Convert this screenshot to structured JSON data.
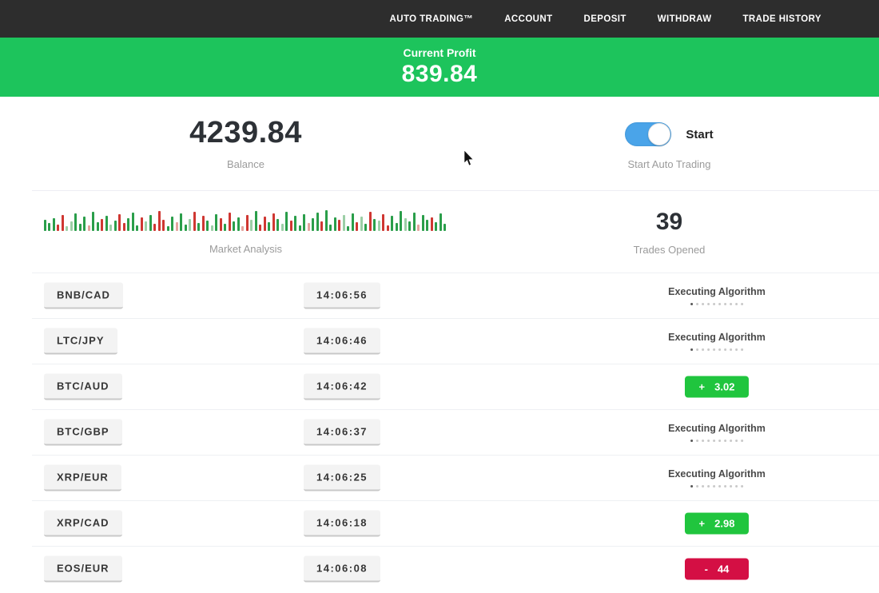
{
  "colors": {
    "navbar_bg": "#2d2d2d",
    "banner_green": "#1dc45c",
    "toggle_blue": "#4aa4e9",
    "profit_green": "#20c53e",
    "loss_red": "#d40f44"
  },
  "navbar": {
    "items": [
      "AUTO TRADING™",
      "ACCOUNT",
      "DEPOSIT",
      "WITHDRAW",
      "TRADE HISTORY"
    ]
  },
  "profit_banner": {
    "label": "Current Profit",
    "value": "839.84"
  },
  "summary": {
    "balance_value": "4239.84",
    "balance_label": "Balance",
    "toggle_label": "Start",
    "toggle_sublabel": "Start Auto Trading",
    "toggle_state": "on"
  },
  "market_analysis": {
    "label": "Market Analysis",
    "bar_colors": {
      "g": "#2a9e4a",
      "r": "#cf3732",
      "G": "#9ccfa6",
      "R": "#e4a49e"
    },
    "bars": [
      [
        14,
        "g"
      ],
      [
        10,
        "g"
      ],
      [
        16,
        "g"
      ],
      [
        8,
        "r"
      ],
      [
        20,
        "r"
      ],
      [
        6,
        "G"
      ],
      [
        12,
        "G"
      ],
      [
        22,
        "g"
      ],
      [
        9,
        "g"
      ],
      [
        18,
        "g"
      ],
      [
        7,
        "R"
      ],
      [
        24,
        "g"
      ],
      [
        11,
        "g"
      ],
      [
        15,
        "r"
      ],
      [
        19,
        "g"
      ],
      [
        8,
        "G"
      ],
      [
        13,
        "g"
      ],
      [
        21,
        "r"
      ],
      [
        10,
        "r"
      ],
      [
        16,
        "g"
      ],
      [
        23,
        "g"
      ],
      [
        7,
        "g"
      ],
      [
        17,
        "r"
      ],
      [
        12,
        "G"
      ],
      [
        20,
        "g"
      ],
      [
        9,
        "r"
      ],
      [
        25,
        "r"
      ],
      [
        14,
        "r"
      ],
      [
        6,
        "g"
      ],
      [
        18,
        "g"
      ],
      [
        11,
        "R"
      ],
      [
        22,
        "g"
      ],
      [
        8,
        "g"
      ],
      [
        15,
        "G"
      ],
      [
        24,
        "r"
      ],
      [
        10,
        "g"
      ],
      [
        19,
        "r"
      ],
      [
        13,
        "g"
      ],
      [
        7,
        "G"
      ],
      [
        21,
        "g"
      ],
      [
        16,
        "r"
      ],
      [
        9,
        "g"
      ],
      [
        23,
        "r"
      ],
      [
        12,
        "g"
      ],
      [
        17,
        "g"
      ],
      [
        6,
        "R"
      ],
      [
        20,
        "r"
      ],
      [
        14,
        "G"
      ],
      [
        25,
        "g"
      ],
      [
        8,
        "r"
      ],
      [
        18,
        "r"
      ],
      [
        11,
        "g"
      ],
      [
        22,
        "r"
      ],
      [
        15,
        "g"
      ],
      [
        9,
        "G"
      ],
      [
        24,
        "g"
      ],
      [
        13,
        "r"
      ],
      [
        19,
        "g"
      ],
      [
        7,
        "g"
      ],
      [
        21,
        "g"
      ],
      [
        10,
        "R"
      ],
      [
        16,
        "g"
      ],
      [
        23,
        "g"
      ],
      [
        12,
        "r"
      ],
      [
        26,
        "g"
      ],
      [
        8,
        "g"
      ],
      [
        17,
        "g"
      ],
      [
        14,
        "r"
      ],
      [
        20,
        "G"
      ],
      [
        6,
        "g"
      ],
      [
        22,
        "g"
      ],
      [
        11,
        "r"
      ],
      [
        18,
        "G"
      ],
      [
        9,
        "g"
      ],
      [
        24,
        "r"
      ],
      [
        15,
        "g"
      ],
      [
        13,
        "G"
      ],
      [
        21,
        "r"
      ],
      [
        7,
        "r"
      ],
      [
        19,
        "g"
      ],
      [
        10,
        "g"
      ],
      [
        25,
        "g"
      ],
      [
        16,
        "G"
      ],
      [
        12,
        "g"
      ],
      [
        23,
        "g"
      ],
      [
        8,
        "R"
      ],
      [
        20,
        "g"
      ],
      [
        14,
        "g"
      ],
      [
        17,
        "r"
      ],
      [
        11,
        "g"
      ],
      [
        22,
        "g"
      ],
      [
        9,
        "g"
      ]
    ]
  },
  "trades_opened": {
    "value": "39",
    "label": "Trades Opened"
  },
  "trades": {
    "executing_dots": 10,
    "rows": [
      {
        "pair": "BNB/CAD",
        "time": "14:06:56",
        "status": {
          "type": "executing",
          "label": "Executing Algorithm"
        }
      },
      {
        "pair": "LTC/JPY",
        "time": "14:06:46",
        "status": {
          "type": "executing",
          "label": "Executing Algorithm"
        }
      },
      {
        "pair": "BTC/AUD",
        "time": "14:06:42",
        "status": {
          "type": "profit",
          "sign": "+",
          "value": "3.02"
        }
      },
      {
        "pair": "BTC/GBP",
        "time": "14:06:37",
        "status": {
          "type": "executing",
          "label": "Executing Algorithm"
        }
      },
      {
        "pair": "XRP/EUR",
        "time": "14:06:25",
        "status": {
          "type": "executing",
          "label": "Executing Algorithm"
        }
      },
      {
        "pair": "XRP/CAD",
        "time": "14:06:18",
        "status": {
          "type": "profit",
          "sign": "+",
          "value": "2.98"
        }
      },
      {
        "pair": "EOS/EUR",
        "time": "14:06:08",
        "status": {
          "type": "loss",
          "sign": "-",
          "value": "44"
        }
      }
    ]
  }
}
